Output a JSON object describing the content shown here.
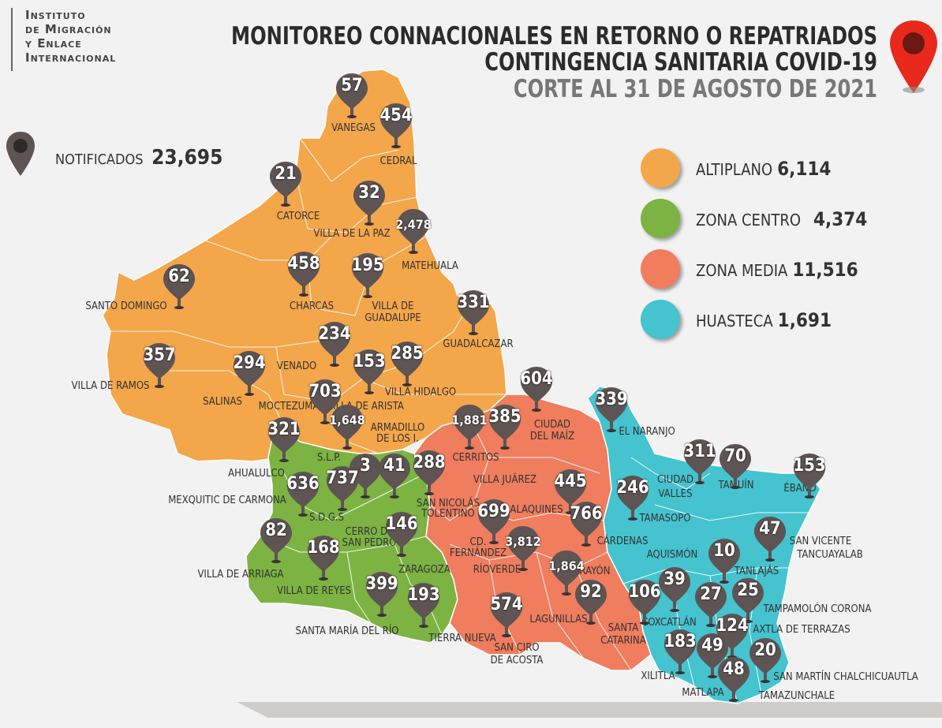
{
  "logo": {
    "line1": "Instituto",
    "line2": "de Migración",
    "line3": "y Enlace",
    "line4": "Internacional"
  },
  "title": {
    "line1": "MONITOREO CONNACIONALES EN RETORNO O REPATRIADOS",
    "line2": "CONTINGENCIA SANITARIA COVID-19",
    "line3": "CORTE AL 31 DE AGOSTO DE 2021"
  },
  "notified": {
    "label": "NOTIFICADOS",
    "value": "23,695"
  },
  "colors": {
    "altiplano": "#f4a64a",
    "centro": "#7cb342",
    "media": "#ef7d5e",
    "huasteca": "#45c3cf",
    "pin": "#5d5453",
    "title_pin": "#e8291c"
  },
  "legend": [
    {
      "label": "ALTIPLANO",
      "value": "6,114",
      "color": "#f4a64a"
    },
    {
      "label": "ZONA CENTRO",
      "value": "4,374",
      "color": "#7cb342"
    },
    {
      "label": "ZONA MEDIA",
      "value": "11,516",
      "color": "#ef7d5e"
    },
    {
      "label": "HUASTECA",
      "value": "1,691",
      "color": "#45c3cf"
    }
  ],
  "pins": [
    "57",
    "454",
    "21",
    "32",
    "2,478",
    "458",
    "195",
    "62",
    "331",
    "234",
    "285",
    "357",
    "294",
    "153",
    "703",
    "604",
    "1,881",
    "385",
    "1,648",
    "321",
    "339",
    "311",
    "70",
    "153",
    "41",
    "288",
    "3",
    "737",
    "636",
    "246",
    "445",
    "47",
    "699",
    "766",
    "146",
    "82",
    "168",
    "3,812",
    "1,864",
    "10",
    "39",
    "399",
    "193",
    "574",
    "92",
    "106",
    "27",
    "25",
    "124",
    "183",
    "49",
    "20",
    "48"
  ],
  "labels": [
    "VANEGAS",
    "CEDRAL",
    "CATORCE",
    "VILLA DE LA PAZ",
    "MATEHUALA",
    "CHARCAS",
    "VILLA DE",
    "GUADALUPE",
    "SANTO DOMINGO",
    "GUADALCAZAR",
    "VENADO",
    "VILLA HIDALGO",
    "VILLA DE RAMOS",
    "SALINAS",
    "MOCTEZUMA",
    "VILLA DE ARISTA",
    "ARMADILLO",
    "DE LOS I.",
    "CIUDAD",
    "DEL MAÍZ",
    "EL NARANJO",
    "CERRITOS",
    "S.L.P.",
    "AHUALULCO",
    "VILLA JUÁREZ",
    "CIUDAD",
    "VALLES",
    "TAMUÍN",
    "ÉBANO",
    "MEXQUITIC DE CARMONA",
    "SAN NICOLÁS",
    "TOLENTINO",
    "ALAQUINES",
    "TAMASOPO",
    "S.D.G.S",
    "CERRO DE",
    "SAN PEDRO",
    "CD.",
    "FERNÁNDEZ",
    "CÁRDENAS",
    "SAN VICENTE",
    "TANCUAYALAB",
    "AQUISMÓN",
    "TANLAJÁS",
    "VILLA DE ARRIAGA",
    "ZARAGOZA",
    "RÍOVERDE",
    "RAYÓN",
    "VILLA DE REYES",
    "TAMPAMOLÓN CORONA",
    "LAGUNILLAS",
    "COXCATLÁN",
    "AXTLA DE TERRAZAS",
    "SANTA",
    "CATARINA",
    "SANTA MARÍA DEL RÍO",
    "TIERRA NUEVA",
    "SAN CIRO",
    "DE ACOSTA",
    "XILITLA",
    "SAN MARTÍN CHALCHICUAUTLA",
    "MATLAPA",
    "TAMAZUNCHALE"
  ]
}
